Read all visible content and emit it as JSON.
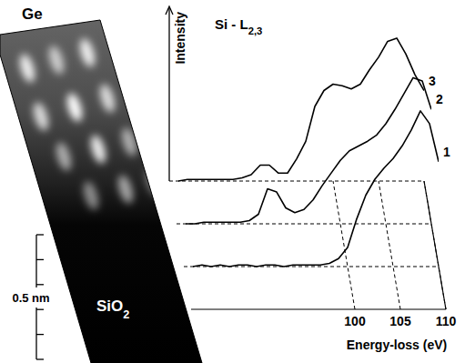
{
  "chart_data": {
    "type": "line",
    "title": "Si - L2,3",
    "x_label": "Energy-loss (eV)",
    "y_label": "Intensity",
    "x": [
      83,
      84,
      85,
      86,
      87,
      88,
      89,
      90,
      91,
      92,
      93,
      94,
      95,
      96,
      97,
      98,
      99,
      100,
      101,
      102,
      103,
      104,
      105,
      106,
      107,
      108,
      109,
      110
    ],
    "xlim": [
      82,
      110
    ],
    "xticks": [
      100,
      105,
      110
    ],
    "ylim": [
      0,
      1.1
    ],
    "tick_labels": "x",
    "series": [
      {
        "name": "1",
        "color": "#000000",
        "values": [
          0,
          0.01,
          0,
          0.01,
          0,
          0.01,
          0.01,
          0,
          0.01,
          0.01,
          0,
          0.01,
          0.01,
          0.01,
          0.01,
          0.02,
          0.05,
          0.12,
          0.3,
          0.45,
          0.55,
          0.62,
          0.68,
          0.76,
          0.86,
          0.98,
          0.9,
          0.66
        ]
      },
      {
        "name": "2",
        "color": "#000000",
        "values": [
          0,
          0,
          0.01,
          0.01,
          0.01,
          0.01,
          0.01,
          0.02,
          0.06,
          0.22,
          0.2,
          0.1,
          0.07,
          0.09,
          0.15,
          0.24,
          0.32,
          0.4,
          0.46,
          0.49,
          0.52,
          0.56,
          0.63,
          0.72,
          0.82,
          0.92,
          0.9,
          0.72
        ]
      },
      {
        "name": "3",
        "color": "#000000",
        "values": [
          0,
          0.01,
          0.01,
          0.01,
          0.01,
          0.01,
          0.01,
          0.02,
          0.04,
          0.1,
          0.1,
          0.05,
          0.05,
          0.14,
          0.25,
          0.47,
          0.57,
          0.61,
          0.6,
          0.58,
          0.61,
          0.7,
          0.78,
          0.88,
          0.9,
          0.8,
          0.67,
          0.57
        ]
      }
    ]
  },
  "image": {
    "top_label": "Ge",
    "bottom_label": "SiO2",
    "scale_bar_label": "0.5 nm"
  }
}
